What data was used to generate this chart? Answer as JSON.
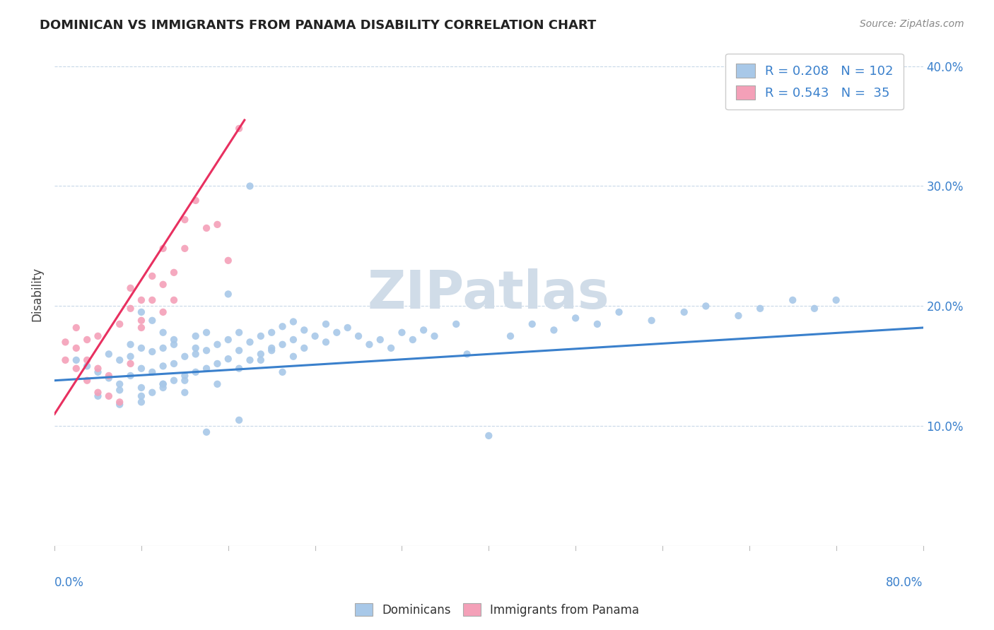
{
  "title": "DOMINICAN VS IMMIGRANTS FROM PANAMA DISABILITY CORRELATION CHART",
  "source": "Source: ZipAtlas.com",
  "ylabel": "Disability",
  "xmin": 0.0,
  "xmax": 0.8,
  "ymin": 0.0,
  "ymax": 0.42,
  "yticks": [
    0.1,
    0.2,
    0.3,
    0.4
  ],
  "ytick_labels": [
    "10.0%",
    "20.0%",
    "30.0%",
    "40.0%"
  ],
  "blue_color": "#a8c8e8",
  "pink_color": "#f4a0b8",
  "blue_line_color": "#3a80cc",
  "pink_line_color": "#e83060",
  "watermark": "ZIPatlas",
  "watermark_color": "#d0dce8",
  "dom_x": [
    0.02,
    0.03,
    0.04,
    0.05,
    0.05,
    0.06,
    0.06,
    0.07,
    0.07,
    0.07,
    0.08,
    0.08,
    0.08,
    0.09,
    0.09,
    0.09,
    0.1,
    0.1,
    0.1,
    0.1,
    0.11,
    0.11,
    0.11,
    0.12,
    0.12,
    0.13,
    0.13,
    0.13,
    0.14,
    0.14,
    0.14,
    0.15,
    0.15,
    0.16,
    0.16,
    0.17,
    0.17,
    0.17,
    0.18,
    0.18,
    0.19,
    0.19,
    0.2,
    0.2,
    0.21,
    0.21,
    0.22,
    0.22,
    0.23,
    0.23,
    0.24,
    0.25,
    0.25,
    0.26,
    0.27,
    0.28,
    0.29,
    0.3,
    0.31,
    0.32,
    0.33,
    0.34,
    0.35,
    0.37,
    0.38,
    0.4,
    0.42,
    0.44,
    0.46,
    0.48,
    0.5,
    0.52,
    0.55,
    0.58,
    0.6,
    0.63,
    0.65,
    0.68,
    0.7,
    0.72,
    0.04,
    0.06,
    0.08,
    0.1,
    0.12,
    0.14,
    0.16,
    0.18,
    0.2,
    0.22,
    0.06,
    0.08,
    0.1,
    0.12,
    0.15,
    0.17,
    0.19,
    0.21,
    0.08,
    0.09,
    0.11,
    0.13
  ],
  "dom_y": [
    0.155,
    0.15,
    0.145,
    0.14,
    0.16,
    0.135,
    0.155,
    0.142,
    0.158,
    0.168,
    0.132,
    0.148,
    0.165,
    0.128,
    0.145,
    0.162,
    0.135,
    0.15,
    0.165,
    0.178,
    0.138,
    0.152,
    0.168,
    0.142,
    0.158,
    0.145,
    0.16,
    0.175,
    0.148,
    0.163,
    0.178,
    0.152,
    0.168,
    0.156,
    0.172,
    0.148,
    0.163,
    0.178,
    0.155,
    0.17,
    0.16,
    0.175,
    0.163,
    0.178,
    0.168,
    0.183,
    0.172,
    0.187,
    0.165,
    0.18,
    0.175,
    0.17,
    0.185,
    0.178,
    0.182,
    0.175,
    0.168,
    0.172,
    0.165,
    0.178,
    0.172,
    0.18,
    0.175,
    0.185,
    0.16,
    0.092,
    0.175,
    0.185,
    0.18,
    0.19,
    0.185,
    0.195,
    0.188,
    0.195,
    0.2,
    0.192,
    0.198,
    0.205,
    0.198,
    0.205,
    0.125,
    0.13,
    0.12,
    0.135,
    0.128,
    0.095,
    0.21,
    0.3,
    0.165,
    0.158,
    0.118,
    0.125,
    0.132,
    0.138,
    0.135,
    0.105,
    0.155,
    0.145,
    0.195,
    0.188,
    0.172,
    0.165
  ],
  "pan_x": [
    0.01,
    0.01,
    0.02,
    0.02,
    0.02,
    0.03,
    0.03,
    0.03,
    0.04,
    0.04,
    0.04,
    0.05,
    0.05,
    0.06,
    0.06,
    0.07,
    0.07,
    0.07,
    0.08,
    0.08,
    0.08,
    0.09,
    0.09,
    0.1,
    0.1,
    0.1,
    0.11,
    0.11,
    0.12,
    0.12,
    0.13,
    0.14,
    0.15,
    0.16,
    0.17
  ],
  "pan_y": [
    0.155,
    0.17,
    0.148,
    0.165,
    0.182,
    0.138,
    0.155,
    0.172,
    0.128,
    0.148,
    0.175,
    0.125,
    0.142,
    0.12,
    0.185,
    0.152,
    0.198,
    0.215,
    0.182,
    0.205,
    0.188,
    0.205,
    0.225,
    0.195,
    0.218,
    0.248,
    0.205,
    0.228,
    0.248,
    0.272,
    0.288,
    0.265,
    0.268,
    0.238,
    0.348
  ],
  "blue_trend_x": [
    0.0,
    0.8
  ],
  "blue_trend_y": [
    0.138,
    0.182
  ],
  "pink_trend_x": [
    0.0,
    0.175
  ],
  "pink_trend_y": [
    0.11,
    0.355
  ]
}
